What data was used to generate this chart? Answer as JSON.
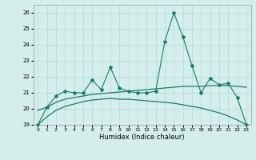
{
  "x": [
    0,
    1,
    2,
    3,
    4,
    5,
    6,
    7,
    8,
    9,
    10,
    11,
    12,
    13,
    14,
    15,
    16,
    17,
    18,
    19,
    20,
    21,
    22,
    23
  ],
  "line_main": [
    19.0,
    20.1,
    20.8,
    21.1,
    21.0,
    21.0,
    21.8,
    21.2,
    22.6,
    21.3,
    21.1,
    21.0,
    21.0,
    21.1,
    24.2,
    26.0,
    24.5,
    22.7,
    21.0,
    21.9,
    21.5,
    21.6,
    20.7,
    19.0
  ],
  "trend_upper": [
    19.9,
    20.1,
    20.4,
    20.6,
    20.7,
    20.8,
    20.9,
    20.95,
    21.0,
    21.05,
    21.1,
    21.15,
    21.2,
    21.25,
    21.3,
    21.35,
    21.4,
    21.4,
    21.4,
    21.45,
    21.45,
    21.45,
    21.4,
    21.35
  ],
  "trend_lower": [
    19.0,
    19.5,
    19.9,
    20.15,
    20.3,
    20.45,
    20.55,
    20.6,
    20.65,
    20.6,
    20.6,
    20.55,
    20.5,
    20.45,
    20.4,
    20.35,
    20.25,
    20.15,
    20.05,
    19.9,
    19.75,
    19.55,
    19.3,
    19.0
  ],
  "line_color": "#1a7a6e",
  "bg_color": "#d4eeeb",
  "grid_color": "#b8d8d5",
  "xlabel": "Humidex (Indice chaleur)",
  "ylim": [
    19,
    26.5
  ],
  "xlim": [
    -0.5,
    23.5
  ],
  "yticks": [
    19,
    20,
    21,
    22,
    23,
    24,
    25,
    26
  ],
  "xticks": [
    0,
    1,
    2,
    3,
    4,
    5,
    6,
    7,
    8,
    9,
    10,
    11,
    12,
    13,
    14,
    15,
    16,
    17,
    18,
    19,
    20,
    21,
    22,
    23
  ]
}
